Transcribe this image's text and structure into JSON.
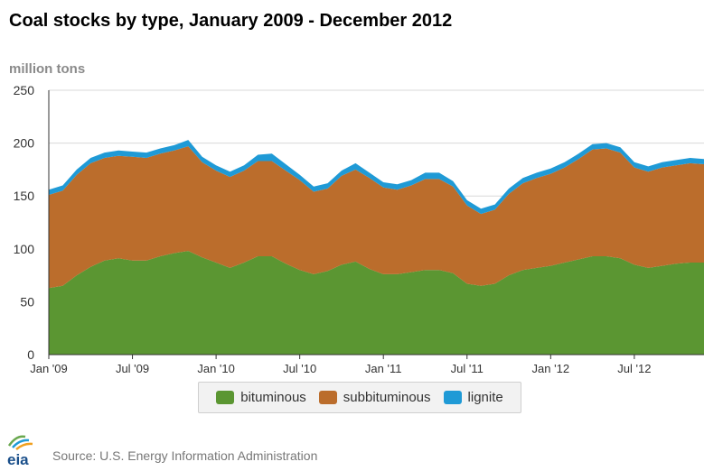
{
  "title": "Coal stocks by type, January 2009 - December 2012",
  "unit_label": "million tons",
  "source": "Source: U.S. Energy Information Administration",
  "logo_text": "eia",
  "colors": {
    "bituminous": "#5b9632",
    "subbituminous": "#bb6d2c",
    "lignite": "#1f9ad6",
    "grid": "#d8d8d8",
    "axis": "#333333"
  },
  "legend": [
    {
      "key": "bituminous",
      "label": "bituminous"
    },
    {
      "key": "subbituminous",
      "label": "subbituminous"
    },
    {
      "key": "lignite",
      "label": "lignite"
    }
  ],
  "chart_data": {
    "type": "area",
    "stacked": true,
    "ylim": [
      0,
      250
    ],
    "yticks": [
      0,
      50,
      100,
      150,
      200,
      250
    ],
    "x_tick_labels": [
      "Jan '09",
      "Jul '09",
      "Jan '10",
      "Jul '10",
      "Jan '11",
      "Jul '11",
      "Jan '12",
      "Jul '12"
    ],
    "x_tick_months": [
      "2009-01",
      "2009-07",
      "2010-01",
      "2010-07",
      "2011-01",
      "2011-07",
      "2012-01",
      "2012-07"
    ],
    "x": [
      "2009-01",
      "2009-02",
      "2009-03",
      "2009-04",
      "2009-05",
      "2009-06",
      "2009-07",
      "2009-08",
      "2009-09",
      "2009-10",
      "2009-11",
      "2009-12",
      "2010-01",
      "2010-02",
      "2010-03",
      "2010-04",
      "2010-05",
      "2010-06",
      "2010-07",
      "2010-08",
      "2010-09",
      "2010-10",
      "2010-11",
      "2010-12",
      "2011-01",
      "2011-02",
      "2011-03",
      "2011-04",
      "2011-05",
      "2011-06",
      "2011-07",
      "2011-08",
      "2011-09",
      "2011-10",
      "2011-11",
      "2011-12",
      "2012-01",
      "2012-02",
      "2012-03",
      "2012-04",
      "2012-05",
      "2012-06",
      "2012-07",
      "2012-08",
      "2012-09",
      "2012-10",
      "2012-11",
      "2012-12"
    ],
    "grid": true,
    "legend_position": "bottom",
    "series": [
      {
        "name": "bituminous",
        "values": [
          63,
          65,
          75,
          83,
          89,
          91,
          89,
          89,
          93,
          96,
          98,
          92,
          87,
          82,
          87,
          93,
          93,
          86,
          80,
          76,
          79,
          85,
          88,
          81,
          76,
          76,
          78,
          80,
          80,
          77,
          67,
          65,
          67,
          75,
          80,
          82,
          84,
          87,
          90,
          93,
          93,
          91,
          85,
          82,
          84,
          86,
          87,
          87
        ]
      },
      {
        "name": "subbituminous",
        "values": [
          88,
          90,
          95,
          98,
          97,
          97,
          98,
          97,
          97,
          97,
          99,
          90,
          87,
          86,
          87,
          90,
          90,
          88,
          85,
          78,
          78,
          84,
          87,
          86,
          82,
          80,
          82,
          86,
          86,
          82,
          74,
          68,
          70,
          77,
          82,
          85,
          87,
          90,
          95,
          101,
          102,
          100,
          92,
          91,
          93,
          93,
          94,
          93
        ]
      },
      {
        "name": "lignite",
        "values": [
          5,
          5,
          5,
          5,
          5,
          5,
          5,
          5,
          5,
          5,
          6,
          5,
          5,
          5,
          5,
          6,
          7,
          6,
          5,
          5,
          5,
          5,
          6,
          5,
          5,
          5,
          5,
          6,
          6,
          5,
          5,
          5,
          5,
          5,
          5,
          5,
          5,
          5,
          5,
          5,
          5,
          5,
          5,
          5,
          5,
          5,
          5,
          5
        ]
      }
    ]
  }
}
